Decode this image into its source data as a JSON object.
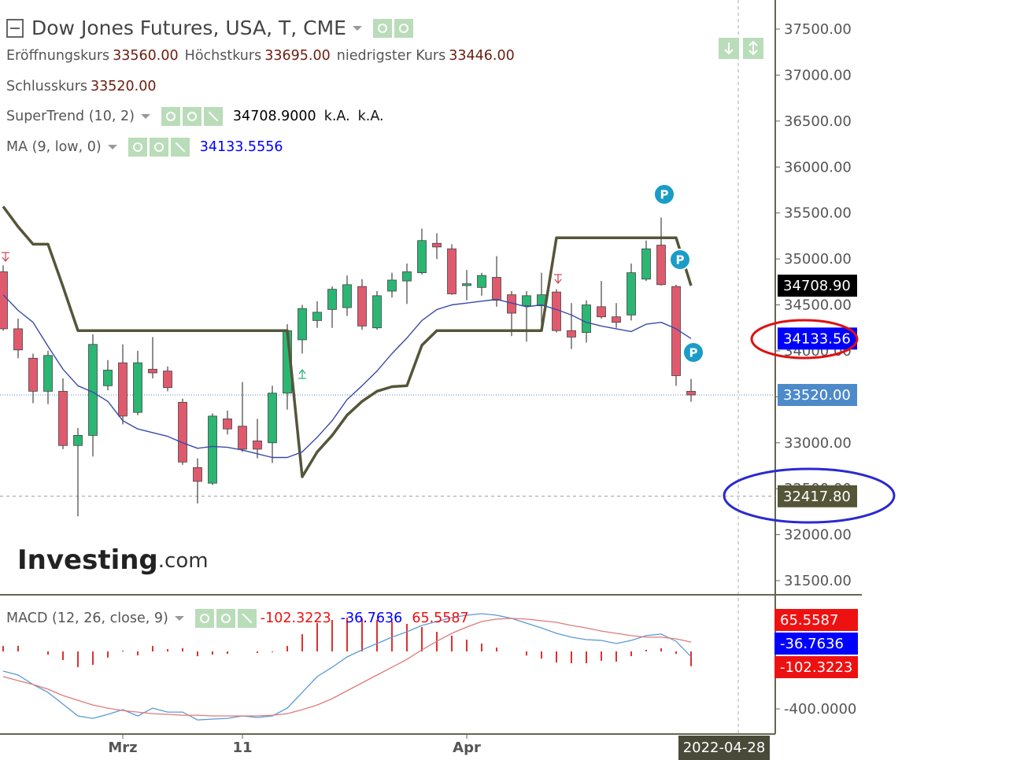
{
  "header": {
    "title": "Dow Jones Futures, USA, T, CME",
    "info": [
      {
        "label": "Eröffnungskurs",
        "value": "33560.00"
      },
      {
        "label": "Höchstkurs",
        "value": "33695.00"
      },
      {
        "label": "niedrigster Kurs",
        "value": "33446.00"
      },
      {
        "label": "Schlusskurs",
        "value": "33520.00"
      }
    ],
    "watermark": {
      "brand": "Investing",
      "suffix": ".com"
    }
  },
  "chart_data": [
    {
      "type": "candlestick",
      "categories": [
        null,
        null,
        null,
        null,
        null,
        null,
        null,
        null,
        "Mrz",
        null,
        null,
        null,
        null,
        null,
        null,
        null,
        "11",
        null,
        null,
        null,
        null,
        null,
        null,
        null,
        null,
        null,
        null,
        null,
        null,
        null,
        null,
        "Apr",
        null,
        null,
        null,
        null,
        null,
        null,
        null,
        null,
        null,
        null,
        null,
        null,
        null,
        null,
        null
      ],
      "open": [
        34860,
        34240,
        33920,
        33560,
        33560,
        32970,
        33080,
        33620,
        33870,
        33330,
        33800,
        33780,
        33440,
        32730,
        32560,
        33260,
        33180,
        33020,
        33000,
        33540,
        34120,
        34330,
        34450,
        34470,
        34700,
        34250,
        34650,
        34760,
        34850,
        35170,
        35110,
        34710,
        34690,
        34800,
        34610,
        34490,
        34490,
        34640,
        34220,
        34200,
        34480,
        34370,
        34390,
        34780,
        35150,
        34700,
        33560
      ],
      "high": [
        34930,
        34350,
        33970,
        34000,
        33700,
        33160,
        34180,
        33900,
        34070,
        34000,
        34150,
        33830,
        33480,
        32830,
        33320,
        33350,
        33660,
        33260,
        33620,
        34290,
        34500,
        34540,
        34700,
        34820,
        34780,
        34650,
        34850,
        34950,
        35330,
        35280,
        35160,
        34880,
        34850,
        35030,
        34650,
        34650,
        34850,
        34670,
        34520,
        34550,
        34760,
        34520,
        34950,
        35200,
        35450,
        34720,
        33695
      ],
      "low": [
        34220,
        33920,
        33430,
        33420,
        32930,
        32200,
        32850,
        33570,
        33200,
        33300,
        33700,
        33560,
        32760,
        32340,
        32540,
        33090,
        32900,
        32830,
        32780,
        33360,
        33970,
        34250,
        34250,
        34380,
        34230,
        34230,
        34580,
        34510,
        34830,
        35000,
        34610,
        34550,
        34600,
        34480,
        34160,
        34100,
        34220,
        34200,
        34020,
        34090,
        34350,
        34250,
        34330,
        34760,
        34710,
        33620,
        33446
      ],
      "close": [
        34240,
        34010,
        33560,
        33950,
        32970,
        33080,
        34070,
        33790,
        33290,
        33870,
        33760,
        33600,
        32790,
        32580,
        33290,
        33150,
        32930,
        32930,
        33540,
        34220,
        34460,
        34420,
        34670,
        34720,
        34270,
        34600,
        34770,
        34860,
        35200,
        35130,
        34620,
        34730,
        34820,
        34550,
        34410,
        34600,
        34610,
        34220,
        34150,
        34500,
        34370,
        34310,
        34850,
        35110,
        34720,
        33730,
        33520
      ],
      "up_color": "#2bb673",
      "down_color": "#e05a6e",
      "series": [
        {
          "name": "SuperTrend (10, 2)",
          "color": "#55553a",
          "width": 3.5,
          "values": [
            35570,
            35350,
            35160,
            35160,
            34700,
            34220,
            34220,
            34220,
            34220,
            34220,
            34220,
            34220,
            34220,
            34220,
            34220,
            34220,
            34220,
            34220,
            34220,
            34220,
            32630,
            32900,
            33080,
            33300,
            33450,
            33560,
            33610,
            33620,
            34060,
            34220,
            34220,
            34220,
            34220,
            34220,
            34220,
            34220,
            34220,
            35230,
            35230,
            35230,
            35230,
            35230,
            35230,
            35230,
            35230,
            35230,
            34708.9
          ],
          "legend_values": [
            "34708.9000",
            "k.A.",
            "k.A."
          ],
          "flag_label": "34708.90",
          "flag_color": "#000000"
        },
        {
          "name": "MA (9, low, 0)",
          "color": "#3a4aa8",
          "width": 1.4,
          "values": [
            34610,
            34440,
            34310,
            34050,
            33800,
            33620,
            33550,
            33450,
            33240,
            33150,
            33110,
            33070,
            33000,
            32940,
            32960,
            32950,
            32920,
            32880,
            32840,
            32840,
            32900,
            33060,
            33240,
            33470,
            33620,
            33780,
            33970,
            34140,
            34330,
            34450,
            34500,
            34520,
            34540,
            34560,
            34520,
            34480,
            34500,
            34450,
            34390,
            34310,
            34270,
            34240,
            34210,
            34290,
            34310,
            34240,
            34133.5556
          ],
          "legend_values": [
            "34133.5556"
          ],
          "flag_label": "34133.56",
          "flag_color": "#0000ff"
        }
      ],
      "close_flag": {
        "label": "33520.00",
        "color": "#4d8ac9"
      },
      "crosshair": {
        "value": 32417.8,
        "label": "32417.80",
        "date": "2022-04-28"
      },
      "pivot_labels": [
        "P",
        "P",
        "P"
      ],
      "ylim": [
        31346,
        37817
      ],
      "yticks": [
        {
          "value": 31500,
          "label": "31500.00"
        },
        {
          "value": 32000,
          "label": "32000.00"
        },
        {
          "value": 32500,
          "label": "32500.00"
        },
        {
          "value": 33000,
          "label": "33000.00"
        },
        {
          "value": 33500,
          "label": "33500.00"
        },
        {
          "value": 34000,
          "label": "34000.00"
        },
        {
          "value": 34500,
          "label": "34500.00"
        },
        {
          "value": 35000,
          "label": "35000.00"
        },
        {
          "value": 35500,
          "label": "35500.00"
        },
        {
          "value": 36000,
          "label": "36000.00"
        },
        {
          "value": 36500,
          "label": "36500.00"
        },
        {
          "value": 37000,
          "label": "37000.00"
        },
        {
          "value": 37500,
          "label": "37500.00"
        }
      ]
    },
    {
      "type": "macd",
      "title": "MACD (12, 26, close, 9)",
      "series": [
        {
          "kind": "histogram",
          "color": "#e03030",
          "value_label": "-102.3223",
          "flag_color": "#ee1111",
          "values": [
            38,
            39,
            0,
            -22,
            -60,
            -109,
            -93,
            -43,
            6,
            -27,
            38,
            16,
            22,
            -33,
            -22,
            -17,
            0,
            -11,
            -5,
            38,
            120,
            198,
            219,
            236,
            230,
            219,
            209,
            192,
            170,
            137,
            110,
            82,
            55,
            27,
            0,
            -28,
            -50,
            -77,
            -82,
            -82,
            -65,
            -71,
            -33,
            11,
            22,
            -17,
            -102.3223
          ]
        },
        {
          "kind": "line",
          "color": "#5b9bd5",
          "value_label": "-36.7636",
          "flag_color": "#0000ff",
          "values": [
            -137,
            -164,
            -230,
            -285,
            -367,
            -449,
            -466,
            -438,
            -405,
            -449,
            -395,
            -422,
            -422,
            -477,
            -471,
            -466,
            -449,
            -460,
            -449,
            -395,
            -285,
            -175,
            -110,
            -38,
            11,
            55,
            99,
            137,
            181,
            208,
            236,
            252,
            263,
            252,
            230,
            197,
            164,
            126,
            99,
            82,
            77,
            55,
            77,
            110,
            121,
            71,
            -36.7636
          ]
        },
        {
          "kind": "line",
          "color": "#e07a7a",
          "value_label": "65.5587",
          "flag_color": "#ee1111",
          "values": [
            -175,
            -203,
            -230,
            -263,
            -307,
            -340,
            -373,
            -395,
            -411,
            -422,
            -433,
            -438,
            -444,
            -444,
            -449,
            -449,
            -449,
            -449,
            -444,
            -433,
            -405,
            -373,
            -329,
            -274,
            -219,
            -164,
            -110,
            -55,
            11,
            71,
            126,
            170,
            208,
            225,
            230,
            225,
            214,
            203,
            181,
            164,
            142,
            126,
            110,
            99,
            99,
            88,
            65.5587
          ]
        }
      ],
      "ylim": [
        -575,
        389
      ],
      "yticks": [
        {
          "value": -400,
          "label": "-400.0000"
        }
      ]
    }
  ]
}
